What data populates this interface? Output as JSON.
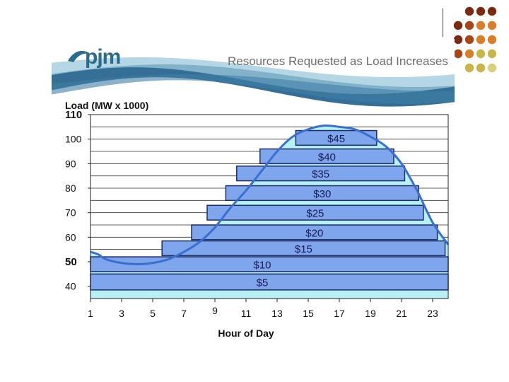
{
  "brand": {
    "logo_text": "pjm",
    "slide_title": "Resources Requested as Load Increases"
  },
  "colors": {
    "dot_palette": [
      "#7a2a12",
      "#a8461a",
      "#d87f2a",
      "#c9b64a",
      "#d8cf7a"
    ],
    "wave_dark": "#1f5f8a",
    "wave_light": "#9cc8dc",
    "curve": "#3a6fcf",
    "area_fill": "#b8f0f8",
    "block_fill": "#7fa6ec",
    "block_border": "#1b2c66"
  },
  "chart_data": {
    "type": "area",
    "title": "",
    "ylabel": "Load (MW x 1000)",
    "xlabel": "Hour of Day",
    "ylim": [
      35,
      110
    ],
    "xlim": [
      1,
      24
    ],
    "y_ticks": [
      110,
      100,
      90,
      80,
      70,
      60,
      50,
      40
    ],
    "x_ticks": [
      "1",
      "3",
      "5",
      "7",
      "9",
      "11",
      "13",
      "15",
      "17",
      "19",
      "21",
      "23"
    ],
    "grid": "horizontal",
    "load_curve": {
      "x": [
        1,
        1.5,
        2,
        3,
        4,
        5,
        6,
        7,
        8,
        9,
        10,
        11,
        12,
        13,
        14,
        15,
        16,
        17,
        18,
        19,
        20,
        21,
        22,
        23,
        24
      ],
      "y": [
        54,
        53,
        51,
        49.5,
        49,
        49.5,
        51,
        54,
        58,
        64,
        72,
        79,
        87,
        95,
        101,
        104,
        105.5,
        105,
        104,
        101,
        97,
        90,
        79,
        66,
        57
      ]
    },
    "price_blocks": [
      {
        "label": "$5",
        "y_bottom": 38.5,
        "y_top": 45,
        "x_start": 1,
        "x_end": 24
      },
      {
        "label": "$10",
        "y_bottom": 46,
        "y_top": 52,
        "x_start": 1,
        "x_end": 24
      },
      {
        "label": "$15",
        "y_bottom": 52.5,
        "y_top": 58.5,
        "x_start": 5.6,
        "x_end": 23.8
      },
      {
        "label": "$20",
        "y_bottom": 59,
        "y_top": 65,
        "x_start": 7.5,
        "x_end": 23.3
      },
      {
        "label": "$25",
        "y_bottom": 67,
        "y_top": 73,
        "x_start": 8.5,
        "x_end": 22.4
      },
      {
        "label": "$30",
        "y_bottom": 75,
        "y_top": 81,
        "x_start": 9.7,
        "x_end": 22.1
      },
      {
        "label": "$35",
        "y_bottom": 83,
        "y_top": 89,
        "x_start": 10.4,
        "x_end": 21.2
      },
      {
        "label": "$40",
        "y_bottom": 90,
        "y_top": 96,
        "x_start": 11.9,
        "x_end": 20.5
      },
      {
        "label": "$45",
        "y_bottom": 97.5,
        "y_top": 103.5,
        "x_start": 14.2,
        "x_end": 19.4
      }
    ]
  }
}
